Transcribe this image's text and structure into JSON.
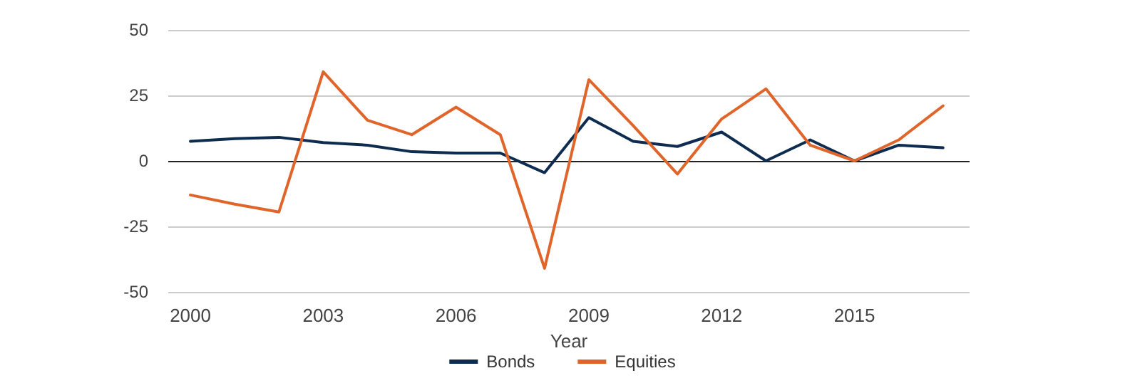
{
  "chart_data": {
    "type": "line",
    "xlabel": "Year",
    "x": [
      2000,
      2001,
      2002,
      2003,
      2004,
      2005,
      2006,
      2007,
      2008,
      2009,
      2010,
      2011,
      2012,
      2013,
      2014,
      2015,
      2016,
      2017
    ],
    "series": [
      {
        "name": "Bonds",
        "color": "#0e2c4f",
        "values": [
          7.5,
          8.5,
          9,
          7,
          6,
          3.5,
          3,
          3,
          -4.5,
          16.5,
          7.5,
          5.5,
          11,
          0,
          8,
          0,
          6,
          5
        ]
      },
      {
        "name": "Equities",
        "color": "#e0652b",
        "values": [
          -13,
          -16.5,
          -19.5,
          34,
          15.5,
          10,
          20.5,
          10,
          -41,
          31,
          13.5,
          -5,
          16,
          27.5,
          6,
          0,
          8,
          21
        ]
      }
    ],
    "xlim": [
      1999.5,
      2017.6
    ],
    "xticks": [
      2000,
      2003,
      2006,
      2009,
      2012,
      2015
    ],
    "ylim": [
      -50,
      50
    ],
    "yticks": [
      -50,
      -25,
      0,
      25,
      50
    ],
    "grid": "y",
    "legend": "bottom",
    "marker": "none",
    "line_style": "solid"
  }
}
